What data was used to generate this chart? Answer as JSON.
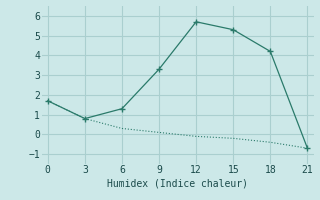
{
  "title": "",
  "xlabel": "Humidex (Indice chaleur)",
  "bg_color": "#cce8e8",
  "grid_color": "#aacfcf",
  "line_color": "#2a7a6a",
  "x_upper": [
    0,
    3,
    6,
    9,
    12,
    15,
    18,
    21
  ],
  "y_upper": [
    1.7,
    0.8,
    1.3,
    3.3,
    5.7,
    5.3,
    4.2,
    -0.7
  ],
  "x_lower": [
    0,
    3,
    6,
    9,
    12,
    15,
    18,
    21
  ],
  "y_lower": [
    1.7,
    0.8,
    0.3,
    0.1,
    -0.1,
    -0.2,
    -0.4,
    -0.7
  ],
  "xlim": [
    -0.5,
    21.5
  ],
  "ylim": [
    -1.5,
    6.5
  ],
  "xticks": [
    0,
    3,
    6,
    9,
    12,
    15,
    18,
    21
  ],
  "yticks": [
    -1,
    0,
    1,
    2,
    3,
    4,
    5,
    6
  ],
  "tick_fontsize": 7,
  "xlabel_fontsize": 7
}
